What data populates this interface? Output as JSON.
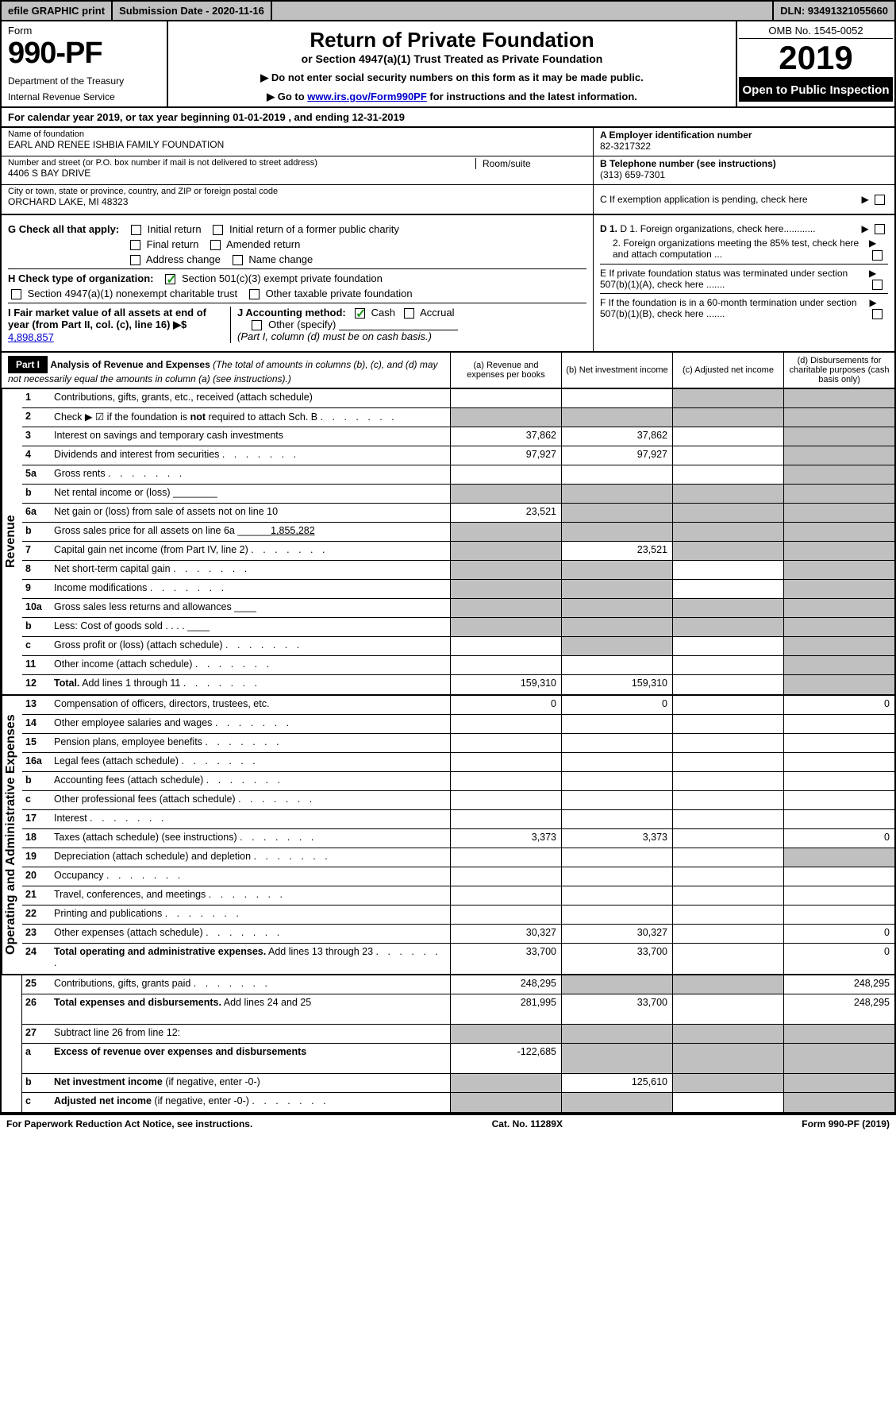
{
  "topbar": {
    "efile": "efile GRAPHIC print",
    "submission_label": "Submission Date - 2020-11-16",
    "dln": "DLN: 93491321055660"
  },
  "header": {
    "form_label": "Form",
    "form_number": "990-PF",
    "dept1": "Department of the Treasury",
    "dept2": "Internal Revenue Service",
    "title": "Return of Private Foundation",
    "subtitle": "or Section 4947(a)(1) Trust Treated as Private Foundation",
    "instr1": "▶ Do not enter social security numbers on this form as it may be made public.",
    "instr2_pre": "▶ Go to ",
    "instr2_link": "www.irs.gov/Form990PF",
    "instr2_post": " for instructions and the latest information.",
    "omb": "OMB No. 1545-0052",
    "year": "2019",
    "open": "Open to Public Inspection"
  },
  "cal_year": "For calendar year 2019, or tax year beginning 01-01-2019                          , and ending 12-31-2019",
  "info": {
    "name_label": "Name of foundation",
    "name_val": "EARL AND RENEE ISHBIA FAMILY FOUNDATION",
    "addr_label": "Number and street (or P.O. box number if mail is not delivered to street address)",
    "addr_val": "4406 S BAY DRIVE",
    "roomsuite_label": "Room/suite",
    "city_label": "City or town, state or province, country, and ZIP or foreign postal code",
    "city_val": "ORCHARD LAKE, MI  48323",
    "ein_label": "A Employer identification number",
    "ein_val": "82-3217322",
    "phone_label": "B Telephone number (see instructions)",
    "phone_val": "(313) 659-7301",
    "c_label": "C If exemption application is pending, check here"
  },
  "checks": {
    "g_label": "G Check all that apply:",
    "g_opts": [
      "Initial return",
      "Initial return of a former public charity",
      "Final return",
      "Amended return",
      "Address change",
      "Name change"
    ],
    "h_label": "H Check type of organization:",
    "h1": "Section 501(c)(3) exempt private foundation",
    "h2": "Section 4947(a)(1) nonexempt charitable trust",
    "h3": "Other taxable private foundation",
    "i_label": "I Fair market value of all assets at end of year (from Part II, col. (c), line 16) ▶$ ",
    "i_val": "4,898,857",
    "j_label": "J Accounting method:",
    "j_cash": "Cash",
    "j_accrual": "Accrual",
    "j_other": "Other (specify)",
    "j_note": "(Part I, column (d) must be on cash basis.)",
    "d1": "D 1. Foreign organizations, check here............",
    "d2": "2. Foreign organizations meeting the 85% test, check here and attach computation ...",
    "e_label": "E  If private foundation status was terminated under section 507(b)(1)(A), check here .......",
    "f_label": "F  If the foundation is in a 60-month termination under section 507(b)(1)(B), check here ......."
  },
  "part1": {
    "label": "Part I",
    "title": "Analysis of Revenue and Expenses",
    "note": " (The total of amounts in columns (b), (c), and (d) may not necessarily equal the amounts in column (a) (see instructions).)",
    "col_a": "(a) Revenue and expenses per books",
    "col_b": "(b) Net investment income",
    "col_c": "(c) Adjusted net income",
    "col_d": "(d) Disbursements for charitable purposes (cash basis only)"
  },
  "sections": {
    "revenue": "Revenue",
    "oae": "Operating and Administrative Expenses"
  },
  "rows": [
    {
      "num": "1",
      "desc": "Contributions, gifts, grants, etc., received (attach schedule)",
      "a": "",
      "b": "",
      "c": "grey",
      "d": "grey"
    },
    {
      "num": "2",
      "desc": "Check ▶ ☑ if the foundation is <b>not</b> required to attach Sch. B",
      "a": "grey",
      "b": "grey",
      "c": "grey",
      "d": "grey",
      "dots": true
    },
    {
      "num": "3",
      "desc": "Interest on savings and temporary cash investments",
      "a": "37,862",
      "b": "37,862",
      "c": "",
      "d": "grey"
    },
    {
      "num": "4",
      "desc": "Dividends and interest from securities",
      "a": "97,927",
      "b": "97,927",
      "c": "",
      "d": "grey",
      "dots": true
    },
    {
      "num": "5a",
      "desc": "Gross rents",
      "a": "",
      "b": "",
      "c": "",
      "d": "grey",
      "dots": true
    },
    {
      "num": "b",
      "desc": "Net rental income or (loss)  ________",
      "a": "grey",
      "b": "grey",
      "c": "grey",
      "d": "grey"
    },
    {
      "num": "6a",
      "desc": "Net gain or (loss) from sale of assets not on line 10",
      "a": "23,521",
      "b": "grey",
      "c": "grey",
      "d": "grey"
    },
    {
      "num": "b",
      "desc": "Gross sales price for all assets on line 6a ______<u>1,855,282</u>",
      "a": "grey",
      "b": "grey",
      "c": "grey",
      "d": "grey"
    },
    {
      "num": "7",
      "desc": "Capital gain net income (from Part IV, line 2)",
      "a": "grey",
      "b": "23,521",
      "c": "grey",
      "d": "grey",
      "dots": true
    },
    {
      "num": "8",
      "desc": "Net short-term capital gain",
      "a": "grey",
      "b": "grey",
      "c": "",
      "d": "grey",
      "dots": true
    },
    {
      "num": "9",
      "desc": "Income modifications",
      "a": "grey",
      "b": "grey",
      "c": "",
      "d": "grey",
      "dots": true
    },
    {
      "num": "10a",
      "desc": "Gross sales less returns and allowances  ____",
      "a": "grey",
      "b": "grey",
      "c": "grey",
      "d": "grey"
    },
    {
      "num": "b",
      "desc": "Less: Cost of goods sold      . . . .  ____",
      "a": "grey",
      "b": "grey",
      "c": "grey",
      "d": "grey"
    },
    {
      "num": "c",
      "desc": "Gross profit or (loss) (attach schedule)",
      "a": "",
      "b": "grey",
      "c": "",
      "d": "grey",
      "dots": true
    },
    {
      "num": "11",
      "desc": "Other income (attach schedule)",
      "a": "",
      "b": "",
      "c": "",
      "d": "grey",
      "dots": true
    },
    {
      "num": "12",
      "desc": "<b>Total.</b> Add lines 1 through 11",
      "a": "159,310",
      "b": "159,310",
      "c": "",
      "d": "grey",
      "dots": true
    },
    {
      "num": "13",
      "desc": "Compensation of officers, directors, trustees, etc.",
      "a": "0",
      "b": "0",
      "c": "",
      "d": "0"
    },
    {
      "num": "14",
      "desc": "Other employee salaries and wages",
      "a": "",
      "b": "",
      "c": "",
      "d": "",
      "dots": true
    },
    {
      "num": "15",
      "desc": "Pension plans, employee benefits",
      "a": "",
      "b": "",
      "c": "",
      "d": "",
      "dots": true
    },
    {
      "num": "16a",
      "desc": "Legal fees (attach schedule)",
      "a": "",
      "b": "",
      "c": "",
      "d": "",
      "dots": true
    },
    {
      "num": "b",
      "desc": "Accounting fees (attach schedule)",
      "a": "",
      "b": "",
      "c": "",
      "d": "",
      "dots": true
    },
    {
      "num": "c",
      "desc": "Other professional fees (attach schedule)",
      "a": "",
      "b": "",
      "c": "",
      "d": "",
      "dots": true
    },
    {
      "num": "17",
      "desc": "Interest",
      "a": "",
      "b": "",
      "c": "",
      "d": "",
      "dots": true
    },
    {
      "num": "18",
      "desc": "Taxes (attach schedule) (see instructions)",
      "a": "3,373",
      "b": "3,373",
      "c": "",
      "d": "0",
      "dots": true
    },
    {
      "num": "19",
      "desc": "Depreciation (attach schedule) and depletion",
      "a": "",
      "b": "",
      "c": "",
      "d": "grey",
      "dots": true
    },
    {
      "num": "20",
      "desc": "Occupancy",
      "a": "",
      "b": "",
      "c": "",
      "d": "",
      "dots": true
    },
    {
      "num": "21",
      "desc": "Travel, conferences, and meetings",
      "a": "",
      "b": "",
      "c": "",
      "d": "",
      "dots": true
    },
    {
      "num": "22",
      "desc": "Printing and publications",
      "a": "",
      "b": "",
      "c": "",
      "d": "",
      "dots": true
    },
    {
      "num": "23",
      "desc": "Other expenses (attach schedule)",
      "a": "30,327",
      "b": "30,327",
      "c": "",
      "d": "0",
      "dots": true
    },
    {
      "num": "24",
      "desc": "<b>Total operating and administrative expenses.</b> Add lines 13 through 23",
      "a": "33,700",
      "b": "33,700",
      "c": "",
      "d": "0",
      "dots": true,
      "tall": true
    },
    {
      "num": "25",
      "desc": "Contributions, gifts, grants paid",
      "a": "248,295",
      "b": "grey",
      "c": "grey",
      "d": "248,295",
      "dots": true
    },
    {
      "num": "26",
      "desc": "<b>Total expenses and disbursements.</b> Add lines 24 and 25",
      "a": "281,995",
      "b": "33,700",
      "c": "",
      "d": "248,295",
      "tall": true
    },
    {
      "num": "27",
      "desc": "Subtract line 26 from line 12:",
      "a": "grey",
      "b": "grey",
      "c": "grey",
      "d": "grey"
    },
    {
      "num": "a",
      "desc": "<b>Excess of revenue over expenses and disbursements</b>",
      "a": "-122,685",
      "b": "grey",
      "c": "grey",
      "d": "grey",
      "tall": true
    },
    {
      "num": "b",
      "desc": "<b>Net investment income</b> (if negative, enter -0-)",
      "a": "grey",
      "b": "125,610",
      "c": "grey",
      "d": "grey"
    },
    {
      "num": "c",
      "desc": "<b>Adjusted net income</b> (if negative, enter -0-)",
      "a": "grey",
      "b": "grey",
      "c": "",
      "d": "grey",
      "dots": true
    }
  ],
  "footer": {
    "left": "For Paperwork Reduction Act Notice, see instructions.",
    "center": "Cat. No. 11289X",
    "right": "Form 990-PF (2019)"
  },
  "colors": {
    "grey": "#c0c0c0",
    "link": "#0000cc",
    "check_green": "#1a9a1a"
  }
}
